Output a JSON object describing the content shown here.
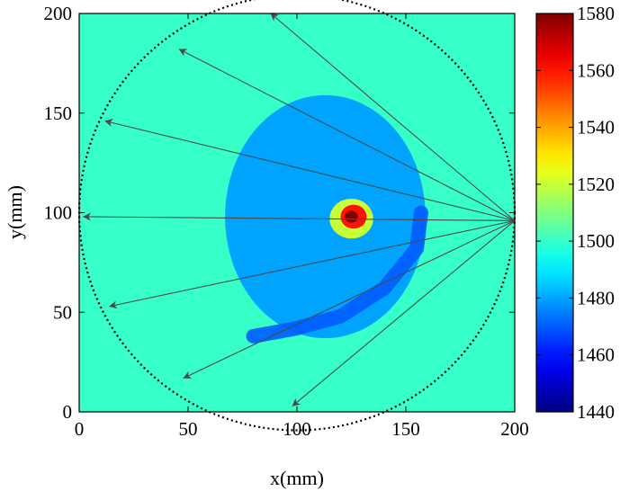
{
  "chart_data": {
    "type": "heatmap",
    "title": "",
    "xlabel": "x(mm)",
    "ylabel": "y(mm)",
    "xlim": [
      0,
      200
    ],
    "ylim": [
      0,
      200
    ],
    "x_ticks": [
      0,
      50,
      100,
      150,
      200
    ],
    "y_ticks": [
      0,
      50,
      100,
      150,
      200
    ],
    "colorbar": {
      "range": [
        1440,
        1580
      ],
      "ticks": [
        1440,
        1460,
        1480,
        1500,
        1520,
        1540,
        1560,
        1580
      ],
      "colormap": "jet"
    },
    "background_value": 1500,
    "regions": [
      {
        "name": "body",
        "value": 1480,
        "center": [
          113,
          98
        ],
        "radius_x": 46,
        "radius_y": 61
      },
      {
        "name": "lower-low-band",
        "value": 1470,
        "polyline": [
          [
            80,
            38
          ],
          [
            100,
            42
          ],
          [
            120,
            48
          ],
          [
            140,
            62
          ],
          [
            155,
            82
          ],
          [
            157,
            100
          ]
        ]
      },
      {
        "name": "inclusion-halo",
        "value": 1520,
        "center": [
          125,
          97
        ],
        "radius": 10
      },
      {
        "name": "inclusion-core",
        "value": 1560,
        "center": [
          126,
          98
        ],
        "radius": 6
      },
      {
        "name": "inclusion-peak",
        "value": 1580,
        "center": [
          125,
          98
        ],
        "radius": 3
      }
    ],
    "ring": {
      "center": [
        100,
        100
      ],
      "radius": 100,
      "style": "dotted"
    },
    "rays": {
      "source": [
        200,
        96
      ],
      "targets": [
        [
          88,
          200
        ],
        [
          46,
          182
        ],
        [
          12,
          146
        ],
        [
          2,
          98
        ],
        [
          14,
          53
        ],
        [
          48,
          17
        ],
        [
          98,
          3
        ]
      ]
    }
  }
}
